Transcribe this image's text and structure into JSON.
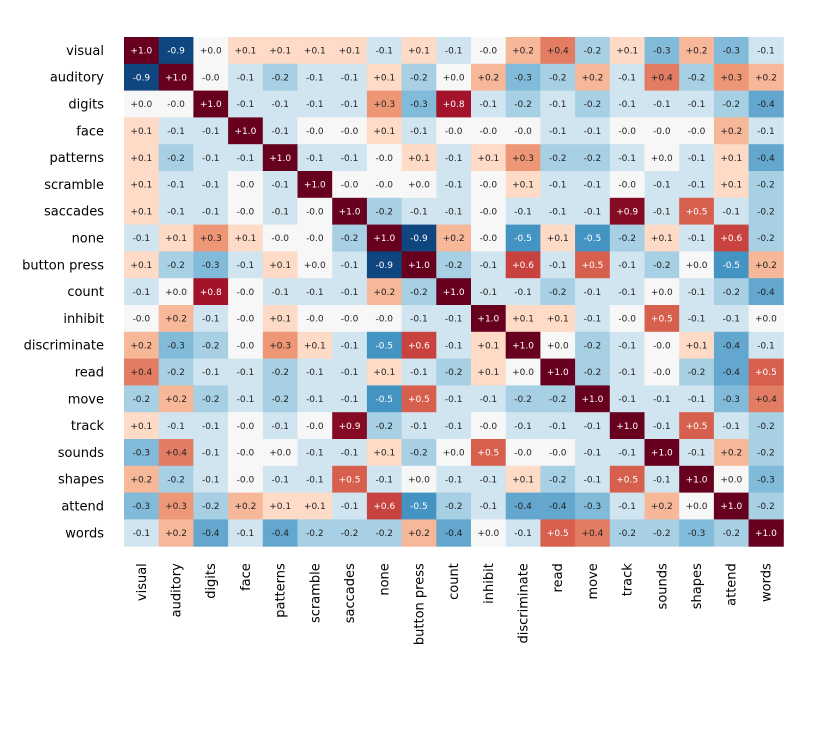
{
  "chart_data": {
    "type": "heatmap",
    "title": "",
    "xlabel": "",
    "ylabel": "",
    "colormap": "RdBu_r",
    "vmin": -1.0,
    "vmax": 1.0,
    "labels": [
      "visual",
      "auditory",
      "digits",
      "face",
      "patterns",
      "scramble",
      "saccades",
      "none",
      "button press",
      "count",
      "inhibit",
      "discriminate",
      "read",
      "move",
      "track",
      "sounds",
      "shapes",
      "attend",
      "words"
    ],
    "matrix": [
      [
        1.0,
        -0.9,
        0.0,
        0.1,
        0.1,
        0.1,
        0.1,
        -0.1,
        0.1,
        -0.1,
        -0.0,
        0.2,
        0.4,
        -0.2,
        0.1,
        -0.3,
        0.2,
        -0.3,
        -0.1
      ],
      [
        -0.9,
        1.0,
        -0.0,
        -0.1,
        -0.2,
        -0.1,
        -0.1,
        0.1,
        -0.2,
        0.0,
        0.2,
        -0.3,
        -0.2,
        0.2,
        -0.1,
        0.4,
        -0.2,
        0.3,
        0.2
      ],
      [
        0.0,
        -0.0,
        1.0,
        -0.1,
        -0.1,
        -0.1,
        -0.1,
        0.3,
        -0.3,
        0.8,
        -0.1,
        -0.2,
        -0.1,
        -0.2,
        -0.1,
        -0.1,
        -0.1,
        -0.2,
        -0.4
      ],
      [
        0.1,
        -0.1,
        -0.1,
        1.0,
        -0.1,
        -0.0,
        -0.0,
        0.1,
        -0.1,
        -0.0,
        -0.0,
        -0.0,
        -0.1,
        -0.1,
        -0.0,
        -0.0,
        -0.0,
        0.2,
        -0.1
      ],
      [
        0.1,
        -0.2,
        -0.1,
        -0.1,
        1.0,
        -0.1,
        -0.1,
        -0.0,
        0.1,
        -0.1,
        0.1,
        0.3,
        -0.2,
        -0.2,
        -0.1,
        0.0,
        -0.1,
        0.1,
        -0.4
      ],
      [
        0.1,
        -0.1,
        -0.1,
        -0.0,
        -0.1,
        1.0,
        -0.0,
        -0.0,
        0.0,
        -0.1,
        -0.0,
        0.1,
        -0.1,
        -0.1,
        -0.0,
        -0.1,
        -0.1,
        0.1,
        -0.2
      ],
      [
        0.1,
        -0.1,
        -0.1,
        -0.0,
        -0.1,
        -0.0,
        1.0,
        -0.2,
        -0.1,
        -0.1,
        -0.0,
        -0.1,
        -0.1,
        -0.1,
        0.9,
        -0.1,
        0.5,
        -0.1,
        -0.2
      ],
      [
        -0.1,
        0.1,
        0.3,
        0.1,
        -0.0,
        -0.0,
        -0.2,
        1.0,
        -0.9,
        0.2,
        -0.0,
        -0.5,
        0.1,
        -0.5,
        -0.2,
        0.1,
        -0.1,
        0.6,
        -0.2
      ],
      [
        0.1,
        -0.2,
        -0.3,
        -0.1,
        0.1,
        0.0,
        -0.1,
        -0.9,
        1.0,
        -0.2,
        -0.1,
        0.6,
        -0.1,
        0.5,
        -0.1,
        -0.2,
        0.0,
        -0.5,
        0.2
      ],
      [
        -0.1,
        0.0,
        0.8,
        -0.0,
        -0.1,
        -0.1,
        -0.1,
        0.2,
        -0.2,
        1.0,
        -0.1,
        -0.1,
        -0.2,
        -0.1,
        -0.1,
        0.0,
        -0.1,
        -0.2,
        -0.4
      ],
      [
        -0.0,
        0.2,
        -0.1,
        -0.0,
        0.1,
        -0.0,
        -0.0,
        -0.0,
        -0.1,
        -0.1,
        1.0,
        0.1,
        0.1,
        -0.1,
        -0.0,
        0.5,
        -0.1,
        -0.1,
        0.0
      ],
      [
        0.2,
        -0.3,
        -0.2,
        -0.0,
        0.3,
        0.1,
        -0.1,
        -0.5,
        0.6,
        -0.1,
        0.1,
        1.0,
        0.0,
        -0.2,
        -0.1,
        -0.0,
        0.1,
        -0.4,
        -0.1
      ],
      [
        0.4,
        -0.2,
        -0.1,
        -0.1,
        -0.2,
        -0.1,
        -0.1,
        0.1,
        -0.1,
        -0.2,
        0.1,
        0.0,
        1.0,
        -0.2,
        -0.1,
        -0.0,
        -0.2,
        -0.4,
        0.5
      ],
      [
        -0.2,
        0.2,
        -0.2,
        -0.1,
        -0.2,
        -0.1,
        -0.1,
        -0.5,
        0.5,
        -0.1,
        -0.1,
        -0.2,
        -0.2,
        1.0,
        -0.1,
        -0.1,
        -0.1,
        -0.3,
        0.4
      ],
      [
        0.1,
        -0.1,
        -0.1,
        -0.0,
        -0.1,
        -0.0,
        0.9,
        -0.2,
        -0.1,
        -0.1,
        -0.0,
        -0.1,
        -0.1,
        -0.1,
        1.0,
        -0.1,
        0.5,
        -0.1,
        -0.2
      ],
      [
        -0.3,
        0.4,
        -0.1,
        -0.0,
        0.0,
        -0.1,
        -0.1,
        0.1,
        -0.2,
        0.0,
        0.5,
        -0.0,
        -0.0,
        -0.1,
        -0.1,
        1.0,
        -0.1,
        0.2,
        -0.2
      ],
      [
        0.2,
        -0.2,
        -0.1,
        -0.0,
        -0.1,
        -0.1,
        0.5,
        -0.1,
        0.0,
        -0.1,
        -0.1,
        0.1,
        -0.2,
        -0.1,
        0.5,
        -0.1,
        1.0,
        0.0,
        -0.3
      ],
      [
        -0.3,
        0.3,
        -0.2,
        0.2,
        0.1,
        0.1,
        -0.1,
        0.6,
        -0.5,
        -0.2,
        -0.1,
        -0.4,
        -0.4,
        -0.3,
        -0.1,
        0.2,
        0.0,
        1.0,
        -0.2
      ],
      [
        -0.1,
        0.2,
        -0.4,
        -0.1,
        -0.4,
        -0.2,
        -0.2,
        -0.2,
        0.2,
        -0.4,
        0.0,
        -0.1,
        0.5,
        0.4,
        -0.2,
        -0.2,
        -0.3,
        -0.2,
        1.0
      ]
    ]
  }
}
